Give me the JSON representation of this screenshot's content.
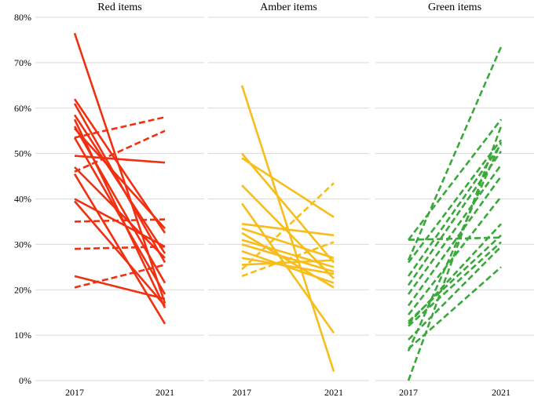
{
  "chart_data": {
    "type": "line",
    "y_axis": {
      "ylim": [
        0,
        80
      ],
      "ticks": [
        0,
        10,
        20,
        30,
        40,
        50,
        60,
        70,
        80
      ],
      "tick_labels": [
        "0%",
        "10%",
        "20%",
        "30%",
        "40%",
        "50%",
        "60%",
        "70%",
        "80%"
      ]
    },
    "panels": [
      {
        "title": "Red items",
        "color": "#f03010",
        "x_labels": [
          "2017",
          "2021"
        ],
        "series": [
          {
            "values": [
              76.5,
              17.0
            ],
            "style": "solid"
          },
          {
            "values": [
              62.0,
              32.5
            ],
            "style": "solid"
          },
          {
            "values": [
              61.0,
              26.0
            ],
            "style": "solid"
          },
          {
            "values": [
              58.5,
              28.0
            ],
            "style": "solid"
          },
          {
            "values": [
              57.5,
              16.0
            ],
            "style": "solid"
          },
          {
            "values": [
              56.0,
              21.5
            ],
            "style": "solid"
          },
          {
            "values": [
              55.5,
              33.5
            ],
            "style": "solid"
          },
          {
            "values": [
              53.5,
              19.0
            ],
            "style": "solid"
          },
          {
            "values": [
              49.5,
              48.0
            ],
            "style": "solid"
          },
          {
            "values": [
              47.0,
              27.0
            ],
            "style": "solid"
          },
          {
            "values": [
              45.5,
              12.5
            ],
            "style": "solid"
          },
          {
            "values": [
              40.0,
              29.5
            ],
            "style": "solid"
          },
          {
            "values": [
              39.5,
              16.5
            ],
            "style": "solid"
          },
          {
            "values": [
              23.0,
              18.0
            ],
            "style": "solid"
          },
          {
            "values": [
              53.5,
              58.0
            ],
            "style": "dashed"
          },
          {
            "values": [
              46.0,
              55.0
            ],
            "style": "dashed"
          },
          {
            "values": [
              35.0,
              35.5
            ],
            "style": "dashed"
          },
          {
            "values": [
              29.0,
              29.5
            ],
            "style": "dashed"
          },
          {
            "values": [
              20.5,
              25.5
            ],
            "style": "dashed"
          }
        ]
      },
      {
        "title": "Amber items",
        "color": "#f7bd1a",
        "x_labels": [
          "2017",
          "2021"
        ],
        "series": [
          {
            "values": [
              65.0,
              2.0
            ],
            "style": "solid"
          },
          {
            "values": [
              50.0,
              26.0
            ],
            "style": "solid"
          },
          {
            "values": [
              49.0,
              36.0
            ],
            "style": "solid"
          },
          {
            "values": [
              43.0,
              22.5
            ],
            "style": "solid"
          },
          {
            "values": [
              39.0,
              10.5
            ],
            "style": "solid"
          },
          {
            "values": [
              34.5,
              32.0
            ],
            "style": "solid"
          },
          {
            "values": [
              33.5,
              27.0
            ],
            "style": "solid"
          },
          {
            "values": [
              32.5,
              20.5
            ],
            "style": "solid"
          },
          {
            "values": [
              31.0,
              25.0
            ],
            "style": "solid"
          },
          {
            "values": [
              30.0,
              24.0
            ],
            "style": "solid"
          },
          {
            "values": [
              28.5,
              21.5
            ],
            "style": "solid"
          },
          {
            "values": [
              27.0,
              23.5
            ],
            "style": "solid"
          },
          {
            "values": [
              25.5,
              26.5
            ],
            "style": "solid"
          },
          {
            "values": [
              24.5,
              43.5
            ],
            "style": "dashed"
          },
          {
            "values": [
              23.0,
              30.5
            ],
            "style": "dashed"
          }
        ]
      },
      {
        "title": "Green items",
        "color": "#3aa83a",
        "x_labels": [
          "2017",
          "2021"
        ],
        "series": [
          {
            "values": [
              26.5,
              73.5
            ],
            "style": "dashed"
          },
          {
            "values": [
              31.0,
              57.5
            ],
            "style": "dashed"
          },
          {
            "values": [
              26.0,
              53.0
            ],
            "style": "dashed"
          },
          {
            "values": [
              23.0,
              52.0
            ],
            "style": "dashed"
          },
          {
            "values": [
              21.0,
              50.5
            ],
            "style": "dashed"
          },
          {
            "values": [
              19.0,
              47.5
            ],
            "style": "dashed"
          },
          {
            "values": [
              16.5,
              45.0
            ],
            "style": "dashed"
          },
          {
            "values": [
              14.5,
              40.5
            ],
            "style": "dashed"
          },
          {
            "values": [
              12.5,
              34.5
            ],
            "style": "dashed"
          },
          {
            "values": [
              13.0,
              32.0
            ],
            "style": "dashed"
          },
          {
            "values": [
              12.0,
              30.5
            ],
            "style": "dashed"
          },
          {
            "values": [
              9.0,
              29.5
            ],
            "style": "dashed"
          },
          {
            "values": [
              7.0,
              25.0
            ],
            "style": "dashed"
          },
          {
            "values": [
              6.5,
              52.5
            ],
            "style": "dashed"
          },
          {
            "values": [
              0.0,
              56.0
            ],
            "style": "dashed"
          },
          {
            "values": [
              31.0,
              31.5
            ],
            "style": "dashed"
          }
        ]
      }
    ]
  }
}
